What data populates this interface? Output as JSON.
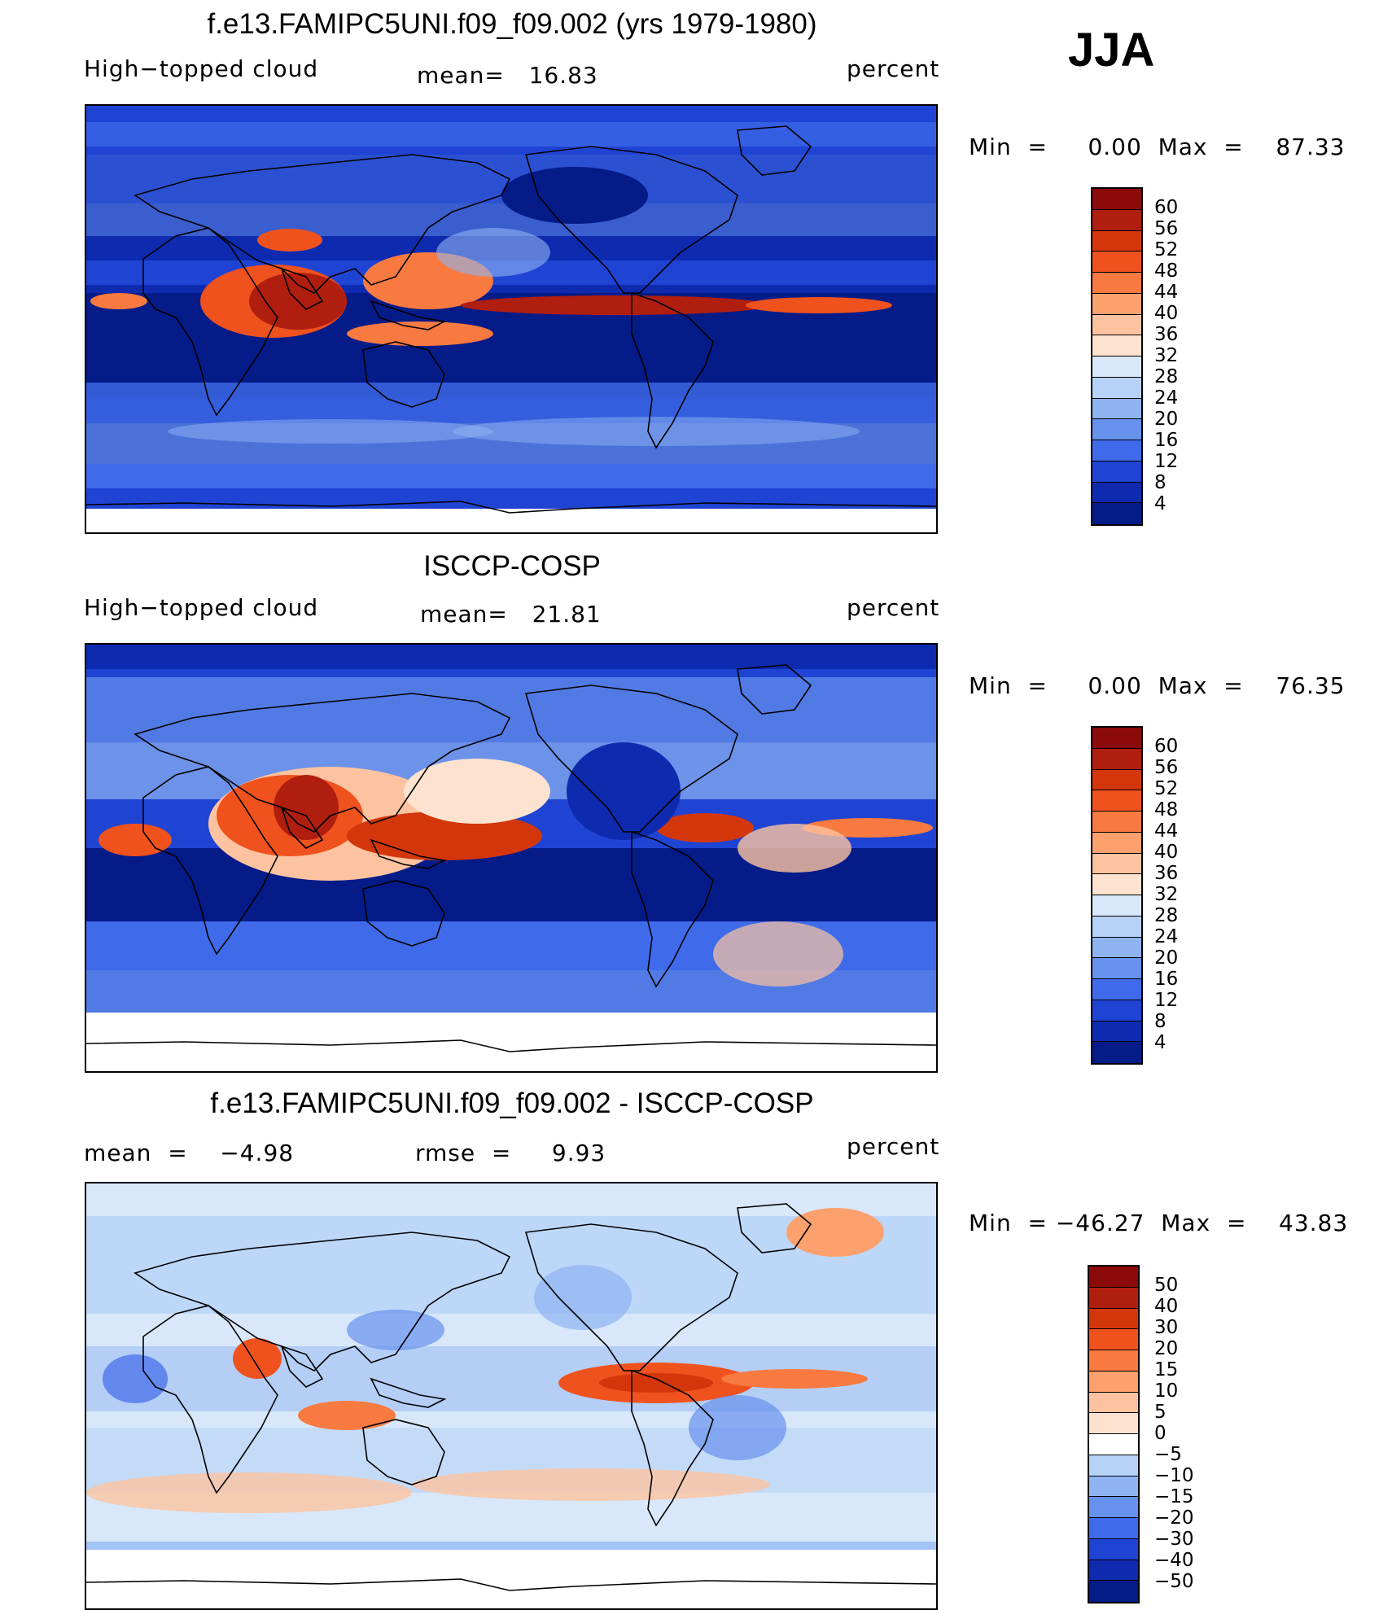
{
  "season": "JJA",
  "panels": [
    {
      "id": "model",
      "title": "f.e13.FAMIPC5UNI.f09_f09.002 (yrs 1979-1980)",
      "left_label": "High−topped cloud",
      "center_label": "mean=   16.83",
      "right_label": "percent",
      "minmax": "Min  =     0.00  Max  =    87.33",
      "colorbar": {
        "labels": [
          "60",
          "56",
          "52",
          "48",
          "44",
          "40",
          "36",
          "32",
          "28",
          "24",
          "20",
          "16",
          "12",
          "8",
          "4"
        ],
        "colors": [
          "#8b0a0a",
          "#b01e10",
          "#d4360c",
          "#f0521e",
          "#f87a40",
          "#fca06e",
          "#fdc3a0",
          "#fde3cf",
          "#d8e8fa",
          "#b7d2f7",
          "#8fb4f2",
          "#6691ec",
          "#3f6bea",
          "#1f44d4",
          "#0e2bb0",
          "#051b88"
        ]
      }
    },
    {
      "id": "obs",
      "title": "ISCCP-COSP",
      "left_label": "High−topped cloud",
      "center_label": "mean=   21.81",
      "right_label": "percent",
      "minmax": "Min  =     0.00  Max  =    76.35",
      "colorbar": {
        "labels": [
          "60",
          "56",
          "52",
          "48",
          "44",
          "40",
          "36",
          "32",
          "28",
          "24",
          "20",
          "16",
          "12",
          "8",
          "4"
        ],
        "colors": [
          "#8b0a0a",
          "#b01e10",
          "#d4360c",
          "#f0521e",
          "#f87a40",
          "#fca06e",
          "#fdc3a0",
          "#fde3cf",
          "#d8e8fa",
          "#b7d2f7",
          "#8fb4f2",
          "#6691ec",
          "#3f6bea",
          "#1f44d4",
          "#0e2bb0",
          "#051b88"
        ]
      }
    },
    {
      "id": "diff",
      "title": "f.e13.FAMIPC5UNI.f09_f09.002 - ISCCP-COSP",
      "left_label": "mean  =    −4.98",
      "center_label": "rmse  =     9.93",
      "right_label": "percent",
      "minmax": "Min  = −46.27  Max  =    43.83",
      "colorbar": {
        "labels": [
          "50",
          "40",
          "30",
          "20",
          "15",
          "10",
          "5",
          "0",
          "−5",
          "−10",
          "−15",
          "−20",
          "−30",
          "−40",
          "−50"
        ],
        "colors": [
          "#8b0a0a",
          "#b01e10",
          "#d4360c",
          "#f0521e",
          "#f87a40",
          "#fca06e",
          "#fdc3a0",
          "#fde3cf",
          "#ffffff",
          "#b7d2f7",
          "#8fb4f2",
          "#6691ec",
          "#3f6bea",
          "#1f44d4",
          "#0e2bb0",
          "#051b88"
        ]
      }
    }
  ]
}
